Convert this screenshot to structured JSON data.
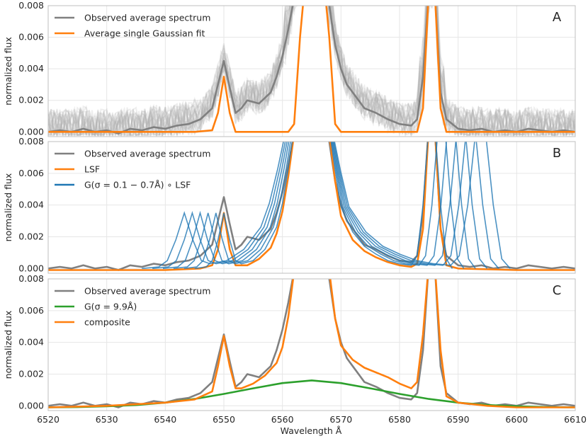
{
  "chart_data": [
    {
      "type": "line",
      "panel_label": "A",
      "ylabel": "normalized flux",
      "xlim": [
        6520,
        6610
      ],
      "ylim": [
        -0.0003,
        0.008
      ],
      "yticks": [
        "0.000",
        "0.002",
        "0.004",
        "0.006",
        "0.008"
      ],
      "legend": [
        "Observed average spectrum",
        "Average single Gaussian fit"
      ],
      "series": [
        {
          "name": "Observed average spectrum",
          "color": "#808080",
          "x": [
            6520,
            6522,
            6524,
            6526,
            6528,
            6530,
            6532,
            6534,
            6536,
            6538,
            6540,
            6542,
            6544,
            6546,
            6548,
            6549,
            6550,
            6551,
            6552,
            6553,
            6554,
            6556,
            6558,
            6559,
            6560,
            6561,
            6562,
            6563,
            6567,
            6568,
            6569,
            6570,
            6571,
            6572,
            6574,
            6576,
            6578,
            6580,
            6582,
            6583,
            6584,
            6585,
            6586,
            6587,
            6588,
            6590,
            6592,
            6594,
            6596,
            6598,
            6600,
            6602,
            6604,
            6606,
            6608,
            6610
          ],
          "y": [
            0.0,
            0.0001,
            0.0,
            0.0002,
            0.0,
            0.0001,
            -0.0001,
            0.0002,
            0.0001,
            0.0003,
            0.0002,
            0.0004,
            0.0005,
            0.0008,
            0.0015,
            0.003,
            0.0045,
            0.0028,
            0.0012,
            0.0015,
            0.002,
            0.0018,
            0.0025,
            0.0035,
            0.0048,
            0.0065,
            0.0085,
            0.01,
            0.01,
            0.008,
            0.0055,
            0.004,
            0.003,
            0.0025,
            0.0015,
            0.0012,
            0.0008,
            0.0005,
            0.0004,
            0.0008,
            0.0035,
            0.009,
            0.009,
            0.0025,
            0.0008,
            0.0002,
            0.0001,
            0.0002,
            0.0,
            0.0001,
            0.0,
            0.0002,
            0.0001,
            0.0,
            0.0001,
            0.0
          ]
        },
        {
          "name": "Average single Gaussian fit",
          "color": "#ff7f0e",
          "x": [
            6520,
            6545,
            6548,
            6549,
            6550,
            6551,
            6552,
            6553,
            6561,
            6562,
            6563,
            6564,
            6567,
            6568,
            6569,
            6570,
            6583,
            6584,
            6585,
            6586,
            6587,
            6588,
            6610
          ],
          "y": [
            0.0,
            0.0,
            0.0001,
            0.0012,
            0.0035,
            0.0012,
            0.0,
            0.0,
            0.0,
            0.0005,
            0.006,
            0.01,
            0.01,
            0.006,
            0.0005,
            0.0,
            0.0,
            0.0015,
            0.009,
            0.009,
            0.0015,
            0.0,
            0.0
          ]
        }
      ]
    },
    {
      "type": "line",
      "panel_label": "B",
      "ylabel": "normalized flux",
      "xlim": [
        6520,
        6610
      ],
      "ylim": [
        -0.0003,
        0.008
      ],
      "yticks": [
        "0.000",
        "0.002",
        "0.004",
        "0.006",
        "0.008"
      ],
      "legend": [
        "Observed average spectrum",
        "LSF",
        "G(σ = 0.1 − 0.7Å) ∘ LSF"
      ],
      "series": [
        {
          "name": "Observed average spectrum",
          "color": "#808080",
          "x": [
            6520,
            6522,
            6524,
            6526,
            6528,
            6530,
            6532,
            6534,
            6536,
            6538,
            6540,
            6542,
            6544,
            6546,
            6548,
            6549,
            6550,
            6551,
            6552,
            6553,
            6554,
            6556,
            6558,
            6559,
            6560,
            6561,
            6562,
            6563,
            6567,
            6568,
            6569,
            6570,
            6571,
            6572,
            6574,
            6576,
            6578,
            6580,
            6582,
            6583,
            6584,
            6585,
            6586,
            6587,
            6588,
            6590,
            6592,
            6594,
            6596,
            6598,
            6600,
            6602,
            6604,
            6606,
            6608,
            6610
          ],
          "y": [
            0.0,
            0.0001,
            0.0,
            0.0002,
            0.0,
            0.0001,
            -0.0001,
            0.0002,
            0.0001,
            0.0003,
            0.0002,
            0.0004,
            0.0005,
            0.0008,
            0.0015,
            0.003,
            0.0045,
            0.0028,
            0.0012,
            0.0015,
            0.002,
            0.0018,
            0.0025,
            0.0035,
            0.0048,
            0.0065,
            0.0085,
            0.01,
            0.01,
            0.008,
            0.0055,
            0.004,
            0.003,
            0.0025,
            0.0015,
            0.0012,
            0.0008,
            0.0005,
            0.0004,
            0.0008,
            0.0035,
            0.009,
            0.009,
            0.0025,
            0.0008,
            0.0002,
            0.0001,
            0.0002,
            0.0,
            0.0001,
            0.0,
            0.0002,
            0.0001,
            0.0,
            0.0001,
            0.0
          ]
        },
        {
          "name": "LSF",
          "color": "#ff7f0e",
          "x": [
            6520,
            6530,
            6540,
            6546,
            6548,
            6549,
            6550,
            6551,
            6552,
            6554,
            6556,
            6558,
            6559,
            6560,
            6561,
            6562,
            6563,
            6567,
            6568,
            6569,
            6570,
            6572,
            6574,
            6576,
            6578,
            6580,
            6582,
            6583,
            6584,
            6585,
            6586,
            6587,
            6588,
            6590,
            6600,
            6610
          ],
          "y": [
            -0.0001,
            -0.0001,
            -0.0001,
            0.0,
            0.0002,
            0.0012,
            0.0035,
            0.0012,
            0.0002,
            0.0002,
            0.0006,
            0.0013,
            0.0022,
            0.0036,
            0.0058,
            0.0085,
            0.01,
            0.01,
            0.0085,
            0.0055,
            0.0033,
            0.0018,
            0.0011,
            0.0007,
            0.0004,
            0.0002,
            0.0001,
            0.0003,
            0.0025,
            0.009,
            0.009,
            0.0025,
            0.0002,
            0.0,
            -0.0001,
            -0.0001
          ]
        },
        {
          "name": "G(σ = 0.1 − 0.7Å) ∘ LSF",
          "color": "#1f77b4",
          "x": [
            6545,
            6547,
            6548,
            6549,
            6550,
            6551,
            6552,
            6553,
            6555,
            6557,
            6559,
            6560,
            6561,
            6562,
            6563,
            6567,
            6568,
            6569,
            6570,
            6572,
            6574,
            6576,
            6578,
            6580,
            6582,
            6583,
            6584,
            6585,
            6586,
            6587,
            6588,
            6589
          ],
          "y": [
            0.0,
            0.0001,
            0.0005,
            0.0018,
            0.0035,
            0.0018,
            0.0005,
            0.0003,
            0.0005,
            0.0012,
            0.0026,
            0.0041,
            0.0063,
            0.0088,
            0.01,
            0.01,
            0.0088,
            0.0062,
            0.0039,
            0.0023,
            0.0014,
            0.0009,
            0.0005,
            0.0003,
            0.0002,
            0.0008,
            0.004,
            0.009,
            0.009,
            0.004,
            0.0006,
            0.0
          ]
        }
      ]
    },
    {
      "type": "line",
      "panel_label": "C",
      "ylabel": "normalized flux",
      "xlabel": "Wavelength Å",
      "xlim": [
        6520,
        6610
      ],
      "ylim": [
        -0.0003,
        0.008
      ],
      "xticks": [
        "6520",
        "6530",
        "6540",
        "6550",
        "6560",
        "6570",
        "6580",
        "6590",
        "6600",
        "6610"
      ],
      "yticks": [
        "0.000",
        "0.002",
        "0.004",
        "0.006",
        "0.008"
      ],
      "legend": [
        "Observed average spectrum",
        "G(σ = 9.9Å)",
        "composite"
      ],
      "series": [
        {
          "name": "Observed average spectrum",
          "color": "#808080",
          "x": [
            6520,
            6522,
            6524,
            6526,
            6528,
            6530,
            6532,
            6534,
            6536,
            6538,
            6540,
            6542,
            6544,
            6546,
            6548,
            6549,
            6550,
            6551,
            6552,
            6553,
            6554,
            6556,
            6558,
            6559,
            6560,
            6561,
            6562,
            6563,
            6567,
            6568,
            6569,
            6570,
            6571,
            6572,
            6574,
            6576,
            6578,
            6580,
            6582,
            6583,
            6584,
            6585,
            6586,
            6587,
            6588,
            6590,
            6592,
            6594,
            6596,
            6598,
            6600,
            6602,
            6604,
            6606,
            6608,
            6610
          ],
          "y": [
            0.0,
            0.0001,
            0.0,
            0.0002,
            0.0,
            0.0001,
            -0.0001,
            0.0002,
            0.0001,
            0.0003,
            0.0002,
            0.0004,
            0.0005,
            0.0008,
            0.0015,
            0.003,
            0.0045,
            0.0028,
            0.0012,
            0.0015,
            0.002,
            0.0018,
            0.0025,
            0.0035,
            0.0048,
            0.0065,
            0.0085,
            0.01,
            0.01,
            0.008,
            0.0055,
            0.004,
            0.003,
            0.0025,
            0.0015,
            0.0012,
            0.0008,
            0.0005,
            0.0004,
            0.0008,
            0.0035,
            0.009,
            0.009,
            0.0025,
            0.0008,
            0.0002,
            0.0001,
            0.0002,
            0.0,
            0.0001,
            0.0,
            0.0002,
            0.0001,
            0.0,
            0.0001,
            0.0
          ]
        },
        {
          "name": "G(σ = 9.9Å)",
          "color": "#2ca02c",
          "x": [
            6520,
            6525,
            6530,
            6535,
            6540,
            6545,
            6550,
            6555,
            6560,
            6565,
            6570,
            6575,
            6580,
            6585,
            6590,
            6595,
            6600,
            6605,
            6610
          ],
          "y": [
            -0.0001,
            -8e-05,
            -3e-05,
            5e-05,
            0.0002,
            0.00043,
            0.00075,
            0.0011,
            0.00143,
            0.0016,
            0.00143,
            0.0011,
            0.00075,
            0.00043,
            0.0002,
            5e-05,
            -3e-05,
            -8e-05,
            -0.0001
          ]
        },
        {
          "name": "composite",
          "color": "#ff7f0e",
          "x": [
            6520,
            6530,
            6540,
            6545,
            6548,
            6549,
            6550,
            6551,
            6552,
            6553,
            6555,
            6557,
            6559,
            6560,
            6561,
            6562,
            6563,
            6567,
            6568,
            6569,
            6570,
            6572,
            6574,
            6576,
            6578,
            6580,
            6582,
            6583,
            6584,
            6585,
            6586,
            6587,
            6588,
            6590,
            6595,
            6600,
            6610
          ],
          "y": [
            -0.0001,
            0.0,
            0.0002,
            0.0004,
            0.0009,
            0.0025,
            0.0044,
            0.0025,
            0.0011,
            0.0011,
            0.0014,
            0.0019,
            0.0027,
            0.0037,
            0.0056,
            0.0085,
            0.01,
            0.01,
            0.0085,
            0.0055,
            0.0038,
            0.0029,
            0.0024,
            0.0021,
            0.0018,
            0.0014,
            0.0011,
            0.0015,
            0.0045,
            0.009,
            0.009,
            0.0035,
            0.0006,
            0.0002,
            0.0,
            -0.0001,
            -0.0001
          ]
        }
      ]
    }
  ]
}
